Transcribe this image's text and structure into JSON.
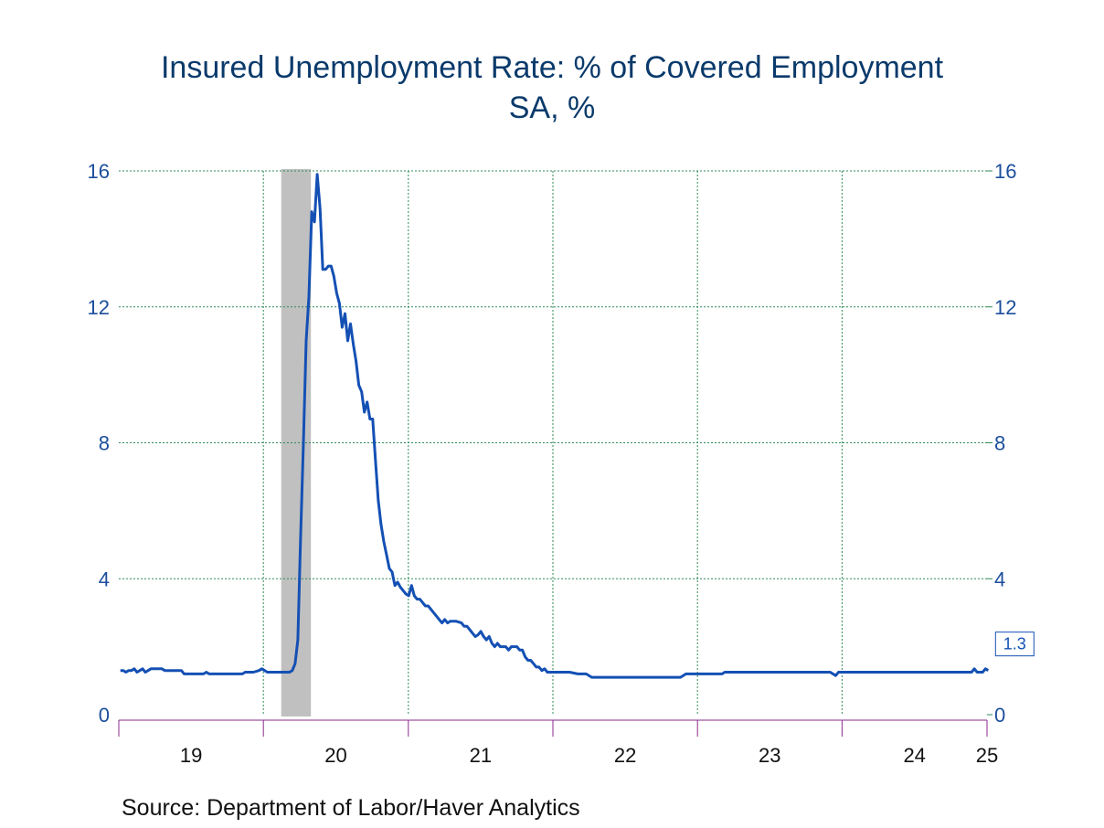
{
  "title": {
    "line1": "Insured Unemployment Rate: % of Covered Employment",
    "line2": "SA, %"
  },
  "source": "Source:  Department of Labor/Haver Analytics",
  "colors": {
    "series": "#1450b4",
    "grid": "#2e8b57",
    "recession": "#c0c0c0",
    "axis_ticks": "#8b2a8b",
    "tick_labels": "#1c4e9c",
    "title": "#0a3a6b"
  },
  "chart_data": {
    "type": "line",
    "title": "Insured Unemployment Rate: % of Covered Employment",
    "subtitle": "SA, %",
    "xlabel": "",
    "ylabel": "",
    "xlim": [
      "2019-01-01",
      "2025-01-01"
    ],
    "ylim": [
      0,
      16
    ],
    "y_ticks": [
      0,
      4,
      8,
      12,
      16
    ],
    "y_tick_labels": [
      "0",
      "4",
      "8",
      "12",
      "16"
    ],
    "axes": "left and right",
    "x_ticks": [
      "2019-01-01",
      "2020-01-01",
      "2021-01-01",
      "2022-01-01",
      "2023-01-01",
      "2024-01-01",
      "2025-01-01"
    ],
    "x_tick_labels": [
      "19",
      "20",
      "21",
      "22",
      "23",
      "24",
      "25"
    ],
    "grid": true,
    "recession_shading": {
      "start": "2020-02-15",
      "end": "2020-04-30"
    },
    "end_label": "1.3",
    "series": [
      {
        "points": [
          [
            "2019-01-05",
            1.3
          ],
          [
            "2019-01-12",
            1.3
          ],
          [
            "2019-01-19",
            1.25
          ],
          [
            "2019-01-26",
            1.3
          ],
          [
            "2019-02-02",
            1.3
          ],
          [
            "2019-02-09",
            1.35
          ],
          [
            "2019-02-16",
            1.25
          ],
          [
            "2019-02-23",
            1.3
          ],
          [
            "2019-03-02",
            1.35
          ],
          [
            "2019-03-09",
            1.25
          ],
          [
            "2019-03-16",
            1.3
          ],
          [
            "2019-03-23",
            1.35
          ],
          [
            "2019-04-06",
            1.35
          ],
          [
            "2019-04-20",
            1.35
          ],
          [
            "2019-04-27",
            1.3
          ],
          [
            "2019-05-11",
            1.3
          ],
          [
            "2019-05-25",
            1.3
          ],
          [
            "2019-06-08",
            1.3
          ],
          [
            "2019-06-15",
            1.2
          ],
          [
            "2019-07-06",
            1.2
          ],
          [
            "2019-08-03",
            1.2
          ],
          [
            "2019-08-10",
            1.25
          ],
          [
            "2019-08-17",
            1.2
          ],
          [
            "2019-09-14",
            1.2
          ],
          [
            "2019-10-12",
            1.2
          ],
          [
            "2019-11-09",
            1.2
          ],
          [
            "2019-11-16",
            1.25
          ],
          [
            "2019-12-07",
            1.25
          ],
          [
            "2019-12-21",
            1.3
          ],
          [
            "2019-12-28",
            1.35
          ],
          [
            "2020-01-04",
            1.3
          ],
          [
            "2020-01-11",
            1.25
          ],
          [
            "2020-02-08",
            1.25
          ],
          [
            "2020-02-22",
            1.25
          ],
          [
            "2020-03-07",
            1.25
          ],
          [
            "2020-03-14",
            1.3
          ],
          [
            "2020-03-21",
            1.5
          ],
          [
            "2020-03-28",
            2.2
          ],
          [
            "2020-04-04",
            5.2
          ],
          [
            "2020-04-11",
            8.0
          ],
          [
            "2020-04-18",
            11.0
          ],
          [
            "2020-04-25",
            12.3
          ],
          [
            "2020-05-02",
            14.8
          ],
          [
            "2020-05-09",
            14.5
          ],
          [
            "2020-05-16",
            15.9
          ],
          [
            "2020-05-23",
            14.9
          ],
          [
            "2020-05-30",
            13.1
          ],
          [
            "2020-06-06",
            13.1
          ],
          [
            "2020-06-13",
            13.2
          ],
          [
            "2020-06-20",
            13.2
          ],
          [
            "2020-06-27",
            12.9
          ],
          [
            "2020-07-04",
            12.4
          ],
          [
            "2020-07-11",
            12.1
          ],
          [
            "2020-07-18",
            11.4
          ],
          [
            "2020-07-25",
            11.8
          ],
          [
            "2020-08-01",
            11.0
          ],
          [
            "2020-08-08",
            11.5
          ],
          [
            "2020-08-15",
            10.9
          ],
          [
            "2020-08-22",
            10.4
          ],
          [
            "2020-08-29",
            9.7
          ],
          [
            "2020-09-05",
            9.5
          ],
          [
            "2020-09-12",
            8.9
          ],
          [
            "2020-09-19",
            9.2
          ],
          [
            "2020-09-26",
            8.7
          ],
          [
            "2020-10-03",
            8.7
          ],
          [
            "2020-10-10",
            7.5
          ],
          [
            "2020-10-17",
            6.3
          ],
          [
            "2020-10-24",
            5.6
          ],
          [
            "2020-10-31",
            5.1
          ],
          [
            "2020-11-07",
            4.7
          ],
          [
            "2020-11-14",
            4.3
          ],
          [
            "2020-11-21",
            4.2
          ],
          [
            "2020-11-28",
            3.8
          ],
          [
            "2020-12-05",
            3.9
          ],
          [
            "2020-12-12",
            3.75
          ],
          [
            "2020-12-19",
            3.65
          ],
          [
            "2020-12-26",
            3.55
          ],
          [
            "2021-01-02",
            3.5
          ],
          [
            "2021-01-09",
            3.8
          ],
          [
            "2021-01-16",
            3.5
          ],
          [
            "2021-01-23",
            3.4
          ],
          [
            "2021-01-30",
            3.4
          ],
          [
            "2021-02-06",
            3.3
          ],
          [
            "2021-02-13",
            3.2
          ],
          [
            "2021-02-20",
            3.2
          ],
          [
            "2021-02-27",
            3.1
          ],
          [
            "2021-03-06",
            3.0
          ],
          [
            "2021-03-13",
            2.9
          ],
          [
            "2021-03-20",
            2.8
          ],
          [
            "2021-03-27",
            2.7
          ],
          [
            "2021-04-03",
            2.8
          ],
          [
            "2021-04-10",
            2.7
          ],
          [
            "2021-04-17",
            2.75
          ],
          [
            "2021-05-01",
            2.75
          ],
          [
            "2021-05-15",
            2.7
          ],
          [
            "2021-05-22",
            2.6
          ],
          [
            "2021-05-29",
            2.6
          ],
          [
            "2021-06-05",
            2.5
          ],
          [
            "2021-06-12",
            2.4
          ],
          [
            "2021-06-19",
            2.3
          ],
          [
            "2021-06-26",
            2.35
          ],
          [
            "2021-07-03",
            2.45
          ],
          [
            "2021-07-10",
            2.3
          ],
          [
            "2021-07-17",
            2.2
          ],
          [
            "2021-07-24",
            2.3
          ],
          [
            "2021-07-31",
            2.1
          ],
          [
            "2021-08-07",
            2.0
          ],
          [
            "2021-08-14",
            2.1
          ],
          [
            "2021-08-21",
            2.0
          ],
          [
            "2021-09-04",
            2.0
          ],
          [
            "2021-09-11",
            1.9
          ],
          [
            "2021-09-18",
            2.0
          ],
          [
            "2021-10-02",
            2.0
          ],
          [
            "2021-10-09",
            1.9
          ],
          [
            "2021-10-16",
            1.9
          ],
          [
            "2021-10-23",
            1.7
          ],
          [
            "2021-10-30",
            1.6
          ],
          [
            "2021-11-06",
            1.6
          ],
          [
            "2021-11-13",
            1.5
          ],
          [
            "2021-11-20",
            1.4
          ],
          [
            "2021-11-27",
            1.4
          ],
          [
            "2021-12-04",
            1.3
          ],
          [
            "2021-12-11",
            1.35
          ],
          [
            "2021-12-18",
            1.25
          ],
          [
            "2022-01-15",
            1.25
          ],
          [
            "2022-02-12",
            1.25
          ],
          [
            "2022-03-05",
            1.2
          ],
          [
            "2022-03-26",
            1.2
          ],
          [
            "2022-04-09",
            1.1
          ],
          [
            "2022-06-04",
            1.1
          ],
          [
            "2022-08-06",
            1.1
          ],
          [
            "2022-10-01",
            1.1
          ],
          [
            "2022-11-19",
            1.1
          ],
          [
            "2022-12-03",
            1.2
          ],
          [
            "2023-01-07",
            1.2
          ],
          [
            "2023-03-04",
            1.2
          ],
          [
            "2023-03-11",
            1.25
          ],
          [
            "2023-06-03",
            1.25
          ],
          [
            "2023-09-02",
            1.25
          ],
          [
            "2023-12-02",
            1.25
          ],
          [
            "2023-12-16",
            1.15
          ],
          [
            "2023-12-23",
            1.25
          ],
          [
            "2024-03-02",
            1.25
          ],
          [
            "2024-06-01",
            1.25
          ],
          [
            "2024-09-07",
            1.25
          ],
          [
            "2024-11-02",
            1.25
          ],
          [
            "2024-11-23",
            1.25
          ],
          [
            "2024-11-30",
            1.35
          ],
          [
            "2024-12-07",
            1.25
          ],
          [
            "2024-12-21",
            1.25
          ],
          [
            "2024-12-28",
            1.35
          ],
          [
            "2025-01-04",
            1.3
          ]
        ]
      }
    ]
  }
}
